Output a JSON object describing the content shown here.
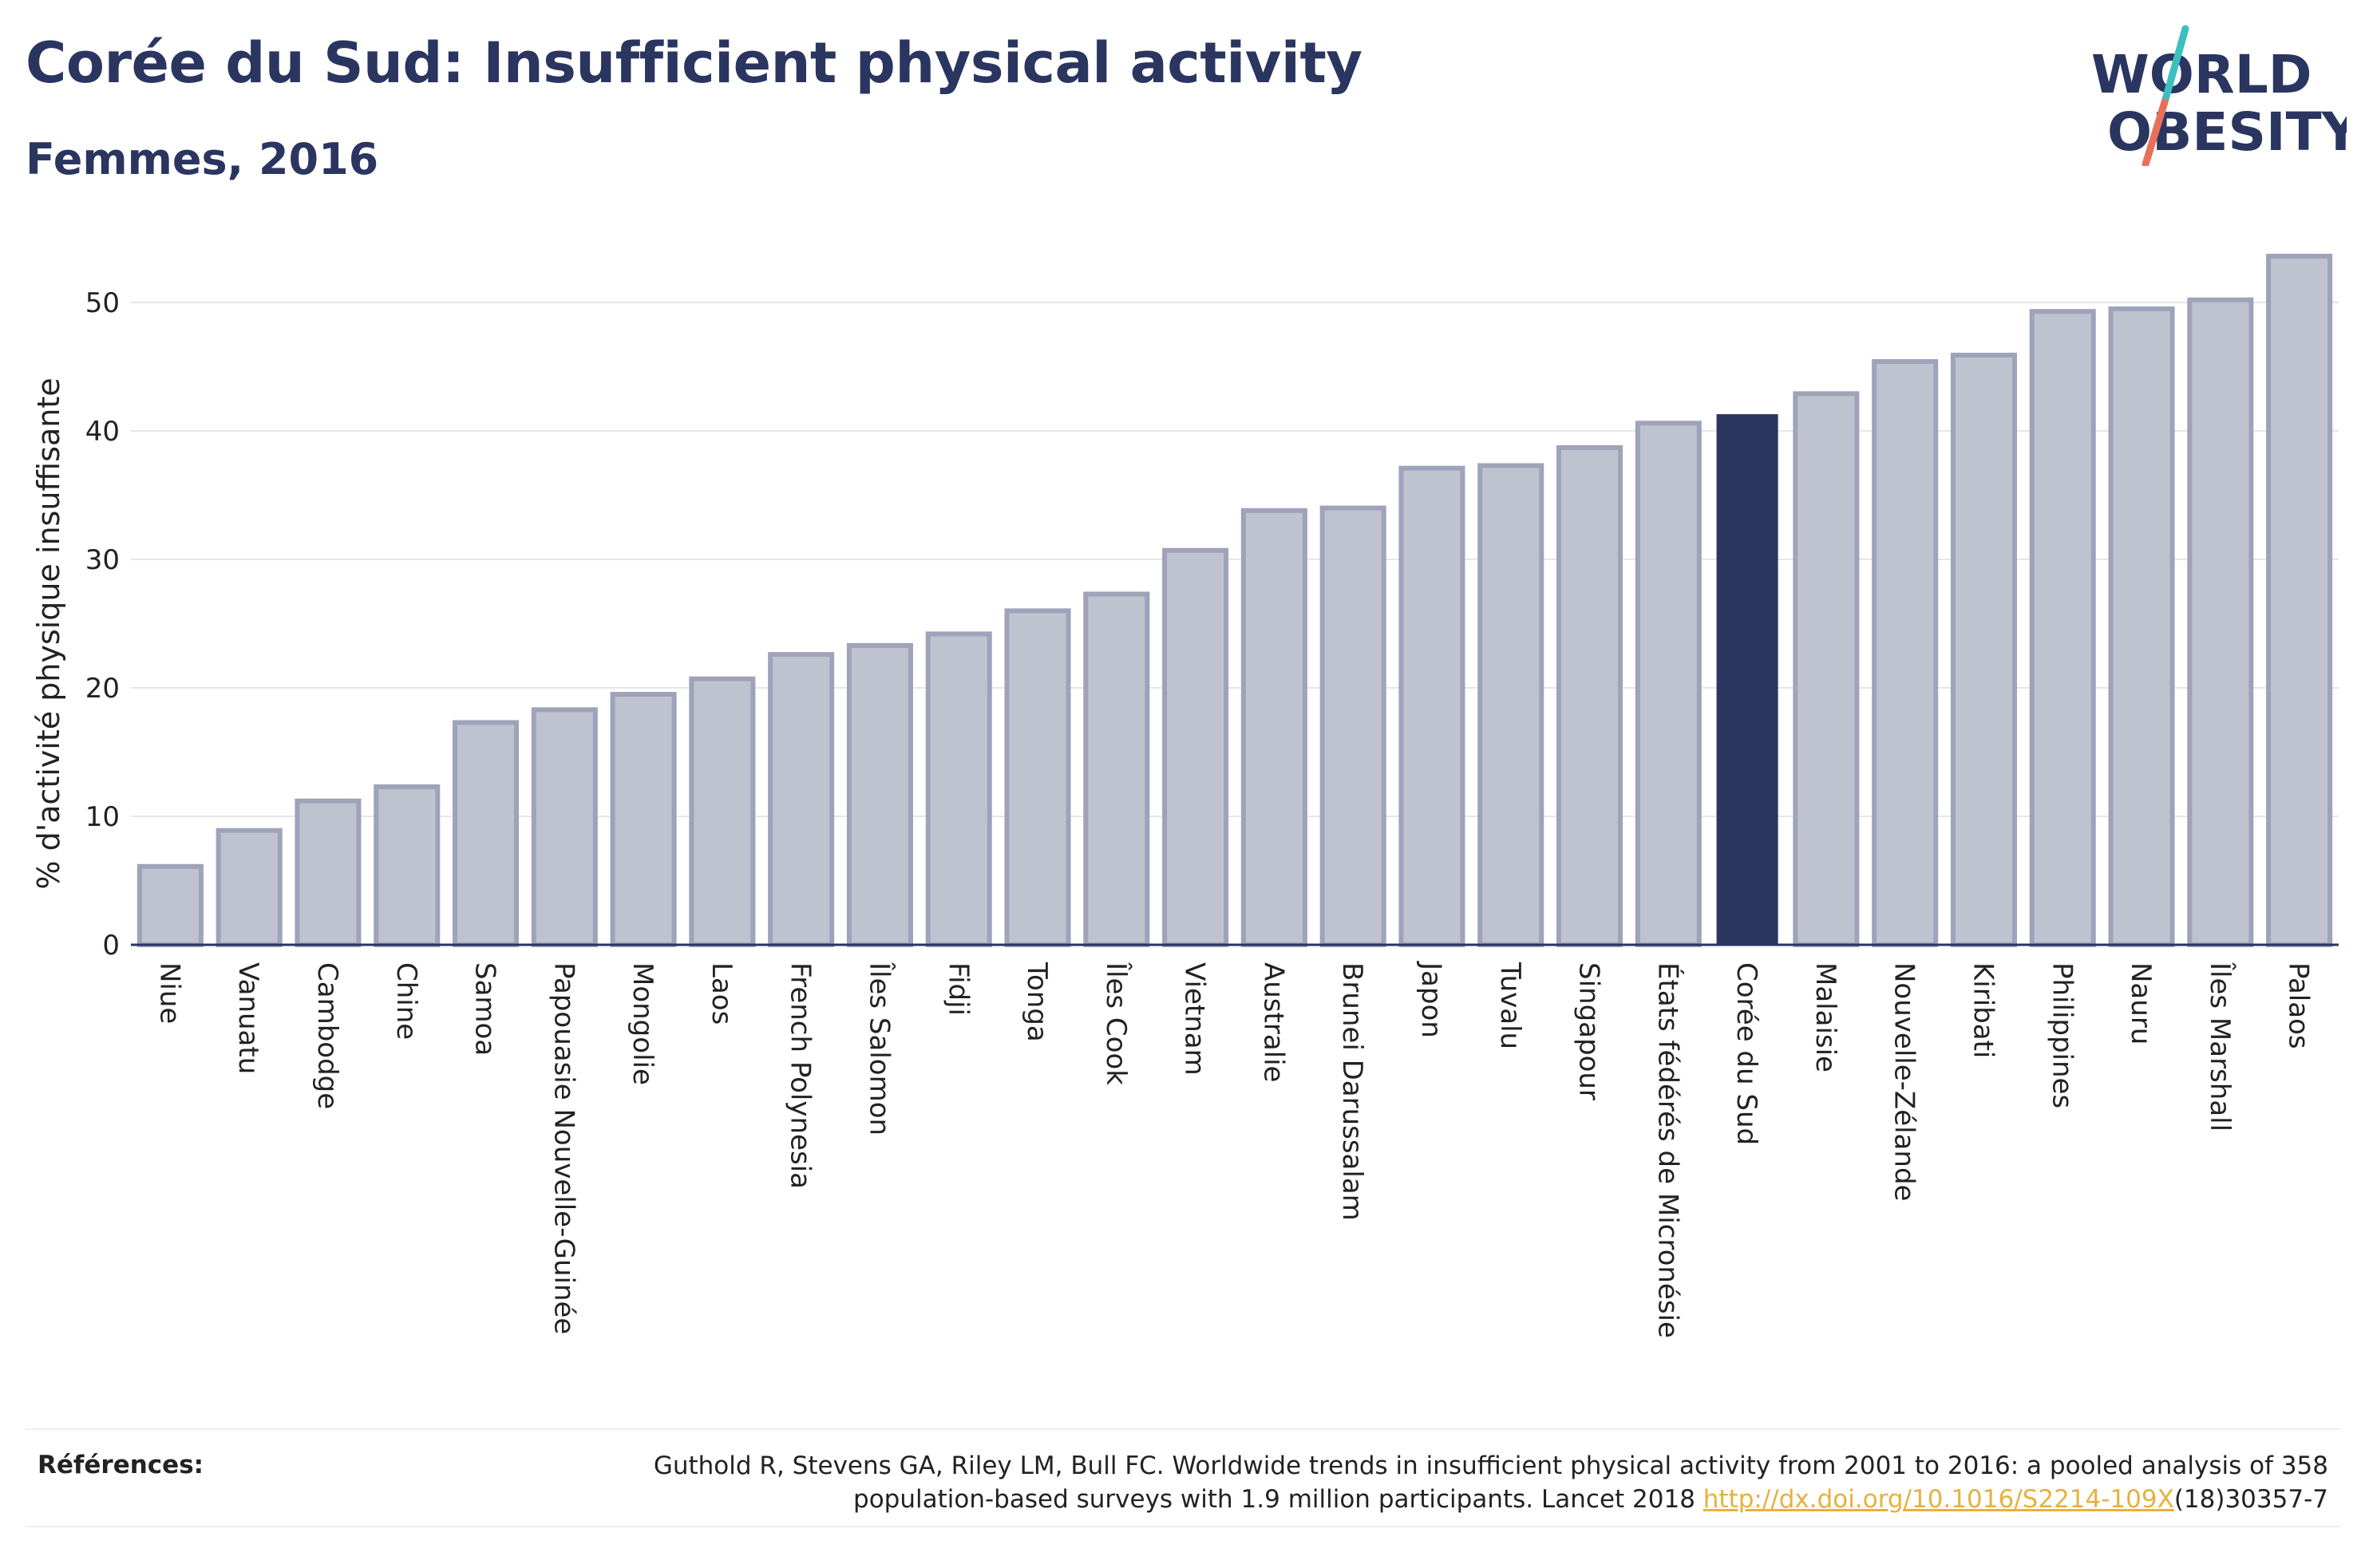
{
  "header": {
    "title": "Corée du Sud: Insufficient physical activity",
    "subtitle": "Femmes, 2016"
  },
  "logo": {
    "line1": "WORLD",
    "line2": "OBESITY"
  },
  "colors": {
    "highlight": "#2a3560",
    "bar_fill": "#bfc2cf",
    "bar_stroke": "#9ea3ba",
    "grid": "#e6e6e6",
    "axis": "#2a3560",
    "logo_teal": "#3cbfbf",
    "logo_coral": "#e8705a"
  },
  "chart_data": {
    "type": "bar",
    "ylabel": "% d'activité physique insuffisante",
    "xlabel": "",
    "ylim": [
      0,
      55
    ],
    "yticks": [
      0,
      10,
      20,
      30,
      40,
      50
    ],
    "grid": true,
    "highlight": "Corée du Sud",
    "categories": [
      "Niue",
      "Vanuatu",
      "Cambodge",
      "Chine",
      "Samoa",
      "Papouasie Nouvelle-Guinée",
      "Mongolie",
      "Laos",
      "French Polynesia",
      "Îles Salomon",
      "Fidji",
      "Tonga",
      "Îles Cook",
      "Vietnam",
      "Australie",
      "Brunei Darussalam",
      "Japon",
      "Tuvalu",
      "Singapour",
      "États fédérés de Micronésie",
      "Corée du Sud",
      "Malaisie",
      "Nouvelle-Zélande",
      "Kiribati",
      "Philippines",
      "Nauru",
      "Îles Marshall",
      "Palaos"
    ],
    "values": [
      6.1,
      8.9,
      11.2,
      12.3,
      17.3,
      18.3,
      19.5,
      20.7,
      22.6,
      23.3,
      24.2,
      26.0,
      27.3,
      30.7,
      33.8,
      34.0,
      37.1,
      37.3,
      38.7,
      40.6,
      41.3,
      42.9,
      45.4,
      45.9,
      49.3,
      49.5,
      50.2,
      53.6
    ]
  },
  "references": {
    "label": "Références:",
    "line1": "Guthold R, Stevens GA, Riley LM, Bull FC. Worldwide trends in insufficient physical activity from 2001 to 2016: a pooled analysis of 358",
    "line2_prefix": "population-based surveys with 1.9 million participants. Lancet 2018 ",
    "link_text": "http://dx.doi.org/10.1016/S2214-109X",
    "line2_suffix": "(18)30357-7"
  }
}
